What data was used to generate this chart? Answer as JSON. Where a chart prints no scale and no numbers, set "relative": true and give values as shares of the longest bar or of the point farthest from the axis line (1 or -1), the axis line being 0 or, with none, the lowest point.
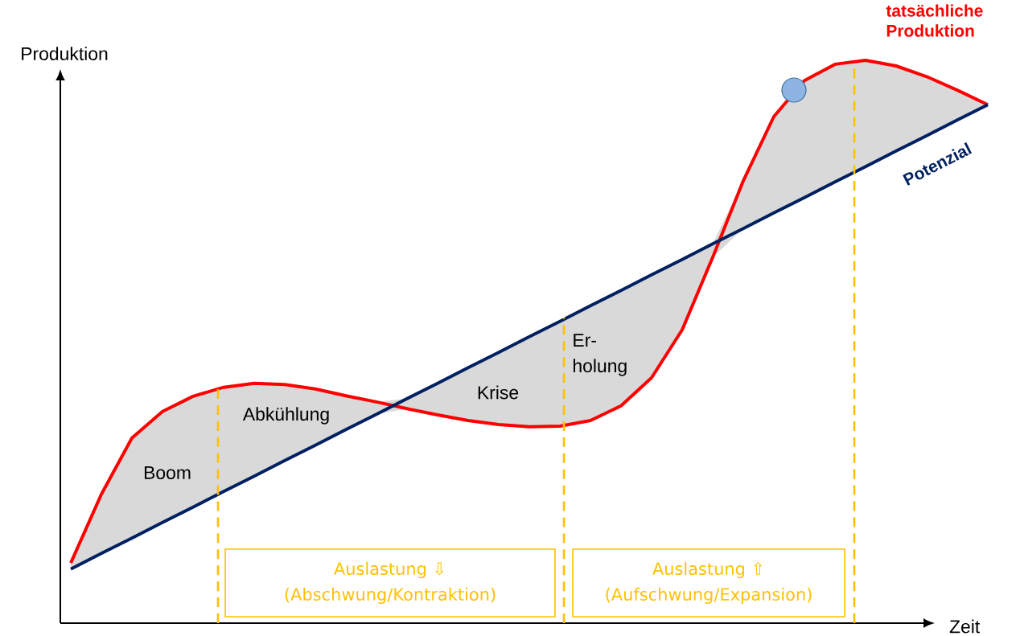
{
  "chart_data": {
    "type": "line",
    "relative": true,
    "xlabel": "Zeit",
    "ylabel": "Produktion",
    "categories": [
      null,
      null,
      null,
      null,
      null,
      null,
      null,
      null,
      null,
      null,
      null,
      null,
      null,
      null,
      null,
      null,
      null,
      null,
      null,
      null,
      null,
      null,
      null,
      null,
      null,
      null,
      null,
      null,
      null,
      null,
      null
    ],
    "series": [
      {
        "name": "tatsächliche Produktion",
        "color": "#ff0000",
        "values": [
          0.107,
          0.229,
          0.329,
          0.376,
          0.403,
          0.419,
          0.426,
          0.424,
          0.416,
          0.404,
          0.393,
          0.381,
          0.37,
          0.36,
          0.353,
          0.349,
          0.35,
          0.36,
          0.386,
          0.436,
          0.521,
          0.65,
          0.786,
          0.9,
          0.964,
          0.993,
          1.0,
          0.99,
          0.971,
          0.947,
          0.921
        ],
        "lower": [
          0.096,
          0.124,
          0.151,
          0.179,
          0.206,
          0.234,
          0.261,
          0.289,
          0.316,
          0.344,
          0.371,
          0.381,
          0.37,
          0.36,
          0.353,
          0.349,
          0.35,
          0.36,
          0.386,
          0.436,
          0.521,
          0.65,
          0.701,
          0.729,
          0.756,
          0.784,
          0.811,
          0.839,
          0.866,
          0.894,
          0.921
        ],
        "upper": [
          0.107,
          0.229,
          0.329,
          0.376,
          0.403,
          0.419,
          0.426,
          0.424,
          0.416,
          0.404,
          0.393,
          0.399,
          0.426,
          0.454,
          0.481,
          0.509,
          0.536,
          0.564,
          0.591,
          0.619,
          0.646,
          0.674,
          0.786,
          0.9,
          0.964,
          0.993,
          1.0,
          0.99,
          0.971,
          0.947,
          0.921
        ]
      },
      {
        "name": "Potenzial",
        "color": "#002060",
        "values": [
          0.096,
          0.124,
          0.151,
          0.179,
          0.206,
          0.234,
          0.261,
          0.289,
          0.316,
          0.344,
          0.371,
          0.399,
          0.426,
          0.454,
          0.481,
          0.509,
          0.536,
          0.564,
          0.591,
          0.619,
          0.646,
          0.674,
          0.701,
          0.729,
          0.756,
          0.784,
          0.811,
          0.839,
          0.866,
          0.894,
          0.921
        ]
      }
    ],
    "annotations": [
      "Boom",
      "Abkühlung",
      "Krise",
      "Er-",
      "holung",
      "Auslastung ⇩",
      "(Abschwung/Kontraktion)",
      "Auslastung ⇧",
      "(Aufschwung/Expansion)"
    ]
  }
}
